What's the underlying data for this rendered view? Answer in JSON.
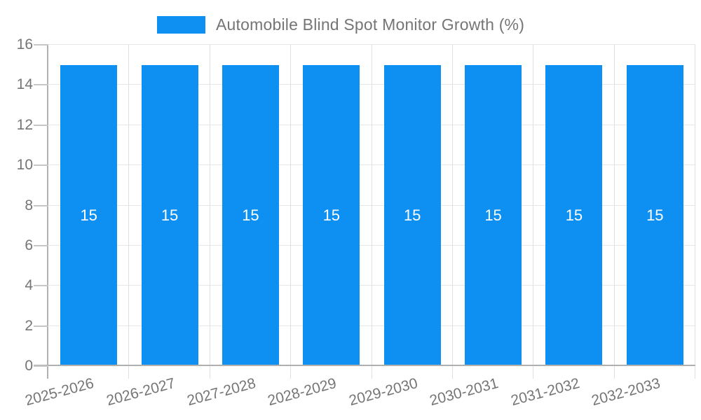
{
  "legend": {
    "label": "Automobile Blind Spot Monitor Growth (%)",
    "position": "top"
  },
  "chart_data": {
    "type": "bar",
    "title": "Automobile Blind Spot Monitor Growth (%)",
    "categories": [
      "2025-2026",
      "2026-2027",
      "2027-2028",
      "2028-2029",
      "2029-2030",
      "2030-2031",
      "2031-2032",
      "2032-2033"
    ],
    "series": [
      {
        "name": "Automobile Blind Spot Monitor Growth (%)",
        "color": "#0E90F2",
        "values": [
          15,
          15,
          15,
          15,
          15,
          15,
          15,
          15
        ]
      }
    ],
    "value_labels": [
      "15",
      "15",
      "15",
      "15",
      "15",
      "15",
      "15",
      "15"
    ],
    "value_label_position": "inside-center",
    "xlabel": "",
    "ylabel": "",
    "ylim": [
      0,
      16
    ],
    "yticks": [
      0,
      2,
      4,
      6,
      8,
      10,
      12,
      14,
      16
    ],
    "grid": "horizontal and vertical group boundaries",
    "legend_position": "top",
    "x_label_rotation_deg": -15
  },
  "colors": {
    "bar": "#0E90F2",
    "axis": "#b0b0b0",
    "gridline_h": "#e6e6e6",
    "gridline_v": "#e0e0e0",
    "tick": "#c6c6c6",
    "text": "#757575",
    "value_label": "#ffffff",
    "background": "#ffffff"
  }
}
